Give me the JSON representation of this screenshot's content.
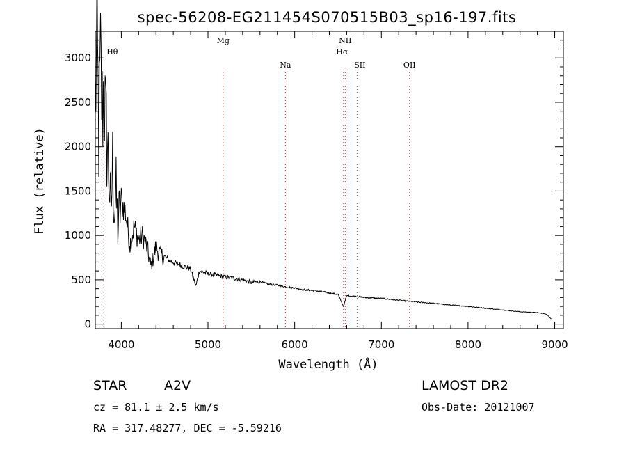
{
  "chart_data": {
    "type": "line",
    "title": "spec-56208-EG211454S070515B03_sp16-197.fits",
    "xlabel": "Wavelength (Å)",
    "ylabel": "Flux (relative)",
    "xlim": [
      3700,
      9100
    ],
    "ylim": [
      -50,
      3300
    ],
    "x_ticks": [
      4000,
      5000,
      6000,
      7000,
      8000,
      9000
    ],
    "y_ticks": [
      0,
      500,
      1000,
      1500,
      2000,
      2500,
      3000
    ],
    "grid": false,
    "series": [
      {
        "x": [
          3700,
          3720,
          3740,
          3760,
          3780,
          3800,
          3820,
          3840,
          3860,
          3880,
          3900,
          3920,
          3940,
          3960,
          3980,
          4000,
          4050,
          4100,
          4150,
          4200,
          4250,
          4300,
          4340,
          4400,
          4450,
          4500,
          4550,
          4600,
          4700,
          4800,
          4861,
          4900,
          5000,
          5100,
          5200,
          5300,
          5400,
          5500,
          5600,
          5700,
          5800,
          5900,
          6000,
          6100,
          6200,
          6300,
          6400,
          6500,
          6563,
          6600,
          6700,
          6800,
          6900,
          7000,
          7200,
          7400,
          7600,
          7800,
          8000,
          8200,
          8400,
          8600,
          8800,
          8900,
          8960
        ],
        "y": [
          2500,
          3200,
          2100,
          2900,
          2400,
          2700,
          2200,
          2000,
          1650,
          1200,
          1800,
          1300,
          1450,
          1100,
          1250,
          1400,
          1250,
          900,
          1100,
          950,
          1000,
          850,
          650,
          870,
          780,
          760,
          720,
          700,
          660,
          620,
          430,
          600,
          570,
          550,
          530,
          520,
          500,
          470,
          480,
          450,
          440,
          420,
          410,
          390,
          380,
          370,
          350,
          335,
          200,
          320,
          315,
          300,
          295,
          290,
          270,
          250,
          235,
          215,
          200,
          180,
          160,
          140,
          130,
          115,
          60
        ]
      }
    ],
    "spectral_lines": [
      {
        "label": "Hθ",
        "x": 3798
      },
      {
        "label": "Mg",
        "x": 5175
      },
      {
        "label": "Na",
        "x": 5893
      },
      {
        "label": "NII",
        "x": 6583
      },
      {
        "label": "Hα",
        "x": 6563
      },
      {
        "label": "SII",
        "x": 6720
      },
      {
        "label": "OII",
        "x": 7325
      }
    ]
  },
  "info": {
    "object_class": "STAR",
    "subclass": "A2V",
    "survey": "LAMOST DR2",
    "redshift": "cz = 81.1 ± 2.5 km/s",
    "obs_date": "Obs-Date: 20121007",
    "coords": "RA = 317.48277, DEC =  -5.59216"
  },
  "colors": {
    "spectrum": "#000000",
    "line_markers": "#e03030",
    "axes": "#000000",
    "background": "#ffffff"
  }
}
